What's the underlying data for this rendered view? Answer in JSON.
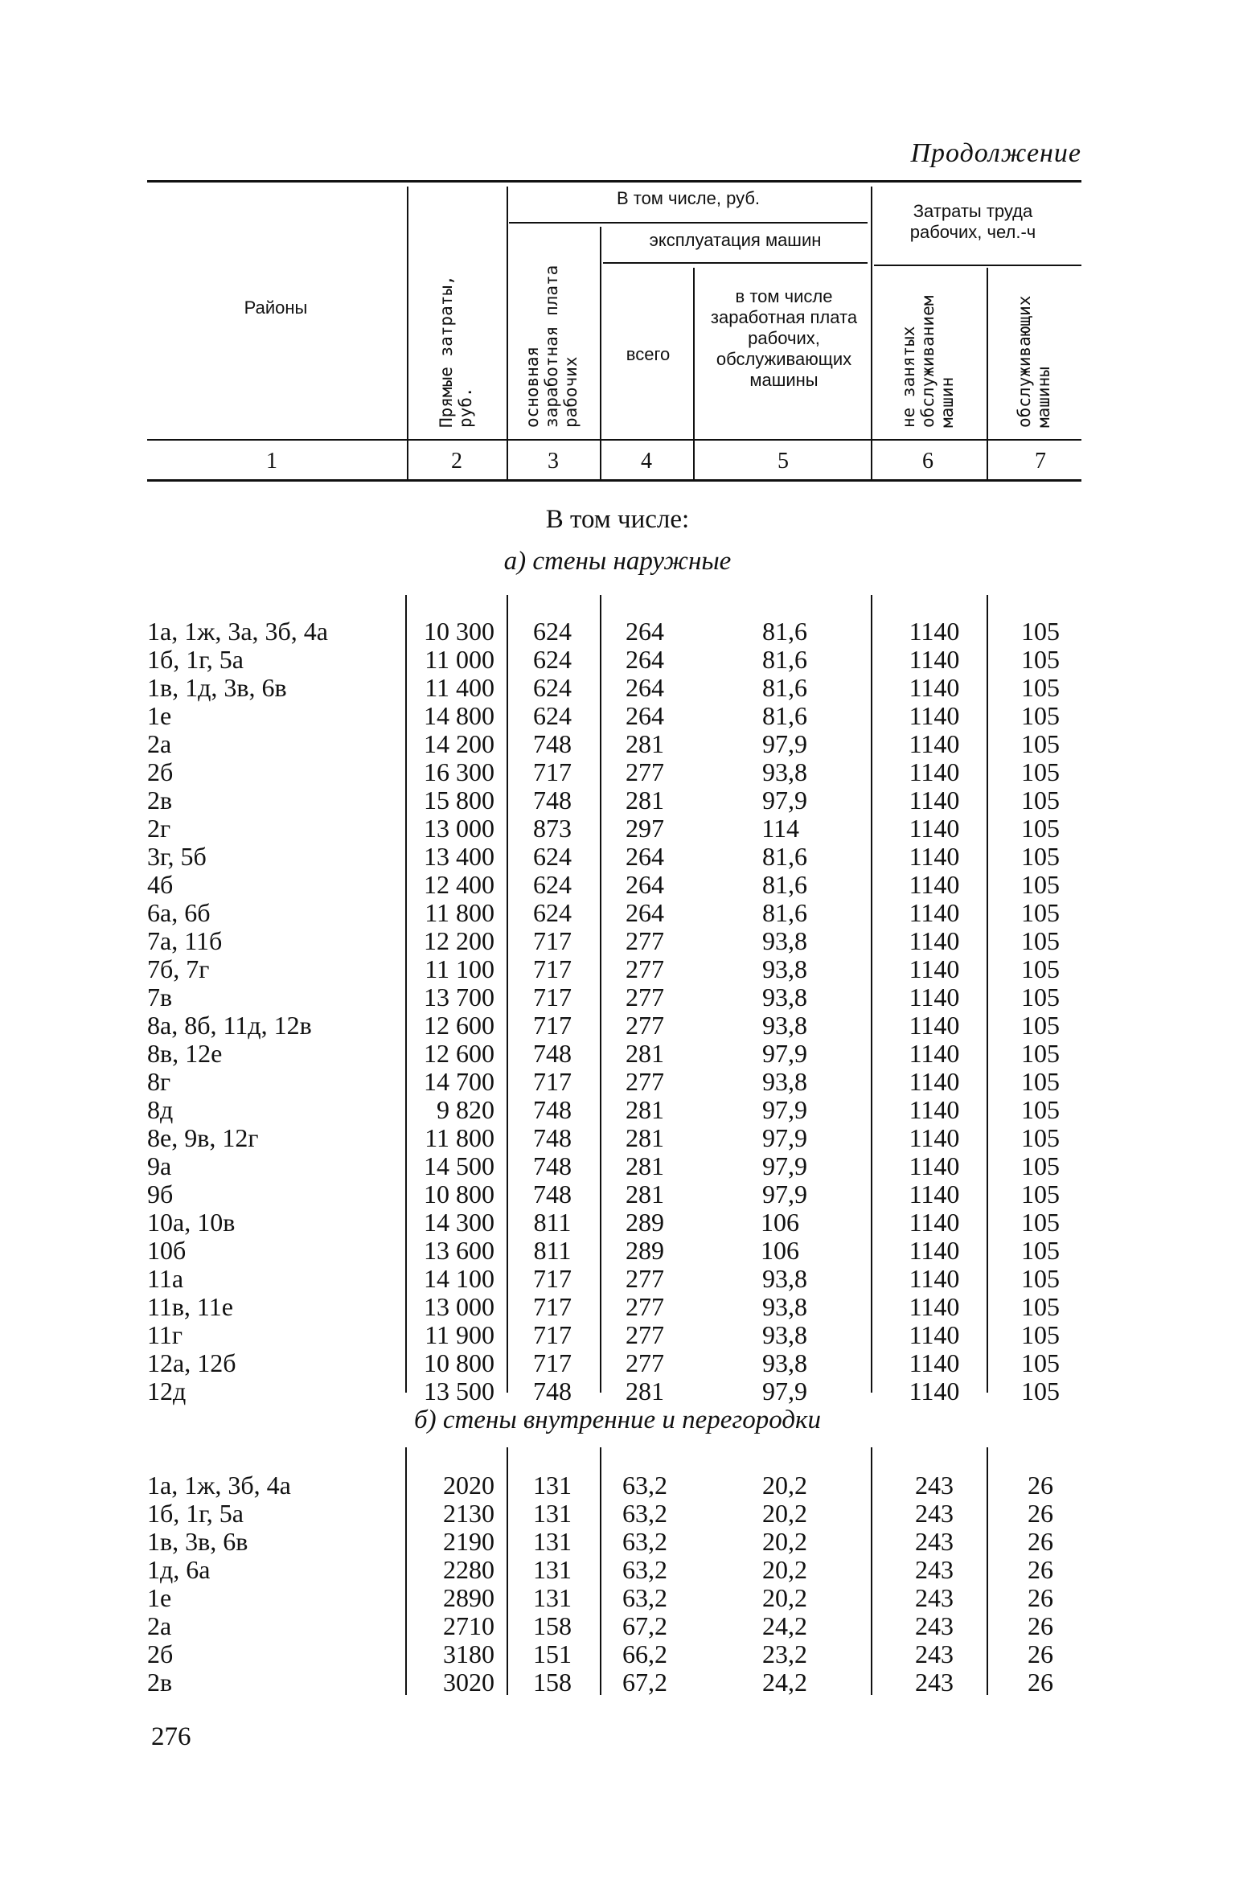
{
  "continuation": "Продолжение",
  "header": {
    "col1": "Районы",
    "col2": "Прямые затраты, руб.",
    "group_including": "В том числе, руб.",
    "col3": "основная заработная плата рабочих",
    "group_machines": "эксплуатация машин",
    "col4": "всего",
    "col5": "в том числе заработная плата рабочих, обслуживающих машины",
    "group_labor": "Затраты труда рабочих, чел.-ч",
    "col6": "не занятых обслуживанием машин",
    "col7": "обслуживающих машины",
    "col_numbers": [
      "1",
      "2",
      "3",
      "4",
      "5",
      "6",
      "7"
    ]
  },
  "including_label": "В том числе:",
  "sections": [
    {
      "title": "а) стены наружные",
      "rows": [
        [
          "1а, 1ж, 3а, 3б, 4а",
          "10 300",
          "624",
          "264",
          "81,6",
          "1140",
          "105"
        ],
        [
          "1б, 1г, 5а",
          "11 000",
          "624",
          "264",
          "81,6",
          "1140",
          "105"
        ],
        [
          "1в, 1д, 3в, 6в",
          "11 400",
          "624",
          "264",
          "81,6",
          "1140",
          "105"
        ],
        [
          "1е",
          "14 800",
          "624",
          "264",
          "81,6",
          "1140",
          "105"
        ],
        [
          "2а",
          "14 200",
          "748",
          "281",
          "97,9",
          "1140",
          "105"
        ],
        [
          "2б",
          "16 300",
          "717",
          "277",
          "93,8",
          "1140",
          "105"
        ],
        [
          "2в",
          "15 800",
          "748",
          "281",
          "97,9",
          "1140",
          "105"
        ],
        [
          "2г",
          "13 000",
          "873",
          "297",
          "114",
          "1140",
          "105"
        ],
        [
          "3г, 5б",
          "13 400",
          "624",
          "264",
          "81,6",
          "1140",
          "105"
        ],
        [
          "4б",
          "12 400",
          "624",
          "264",
          "81,6",
          "1140",
          "105"
        ],
        [
          "6а, 6б",
          "11 800",
          "624",
          "264",
          "81,6",
          "1140",
          "105"
        ],
        [
          "7а, 11б",
          "12 200",
          "717",
          "277",
          "93,8",
          "1140",
          "105"
        ],
        [
          "7б, 7г",
          "11 100",
          "717",
          "277",
          "93,8",
          "1140",
          "105"
        ],
        [
          "7в",
          "13 700",
          "717",
          "277",
          "93,8",
          "1140",
          "105"
        ],
        [
          "8а, 8б, 11д, 12в",
          "12 600",
          "717",
          "277",
          "93,8",
          "1140",
          "105"
        ],
        [
          "8в, 12е",
          "12 600",
          "748",
          "281",
          "97,9",
          "1140",
          "105"
        ],
        [
          "8г",
          "14 700",
          "717",
          "277",
          "93,8",
          "1140",
          "105"
        ],
        [
          "8д",
          "9 820",
          "748",
          "281",
          "97,9",
          "1140",
          "105"
        ],
        [
          "8е, 9в, 12г",
          "11 800",
          "748",
          "281",
          "97,9",
          "1140",
          "105"
        ],
        [
          "9а",
          "14 500",
          "748",
          "281",
          "97,9",
          "1140",
          "105"
        ],
        [
          "9б",
          "10 800",
          "748",
          "281",
          "97,9",
          "1140",
          "105"
        ],
        [
          "10а, 10в",
          "14 300",
          "811",
          "289",
          "106",
          "1140",
          "105"
        ],
        [
          "10б",
          "13 600",
          "811",
          "289",
          "106",
          "1140",
          "105"
        ],
        [
          "11а",
          "14 100",
          "717",
          "277",
          "93,8",
          "1140",
          "105"
        ],
        [
          "11в, 11е",
          "13 000",
          "717",
          "277",
          "93,8",
          "1140",
          "105"
        ],
        [
          "11г",
          "11 900",
          "717",
          "277",
          "93,8",
          "1140",
          "105"
        ],
        [
          "12а, 12б",
          "10 800",
          "717",
          "277",
          "93,8",
          "1140",
          "105"
        ],
        [
          "12д",
          "13 500",
          "748",
          "281",
          "97,9",
          "1140",
          "105"
        ]
      ]
    },
    {
      "title": "б) стены внутренние и перегородки",
      "rows": [
        [
          "1а, 1ж, 3б, 4а",
          "2020",
          "131",
          "63,2",
          "20,2",
          "243",
          "26"
        ],
        [
          "1б, 1г, 5а",
          "2130",
          "131",
          "63,2",
          "20,2",
          "243",
          "26"
        ],
        [
          "1в, 3в, 6в",
          "2190",
          "131",
          "63,2",
          "20,2",
          "243",
          "26"
        ],
        [
          "1д, 6а",
          "2280",
          "131",
          "63,2",
          "20,2",
          "243",
          "26"
        ],
        [
          "1е",
          "2890",
          "131",
          "63,2",
          "20,2",
          "243",
          "26"
        ],
        [
          "2а",
          "2710",
          "158",
          "67,2",
          "24,2",
          "243",
          "26"
        ],
        [
          "2б",
          "3180",
          "151",
          "66,2",
          "23,2",
          "243",
          "26"
        ],
        [
          "2в",
          "3020",
          "158",
          "67,2",
          "24,2",
          "243",
          "26"
        ]
      ]
    }
  ],
  "page_number": "276"
}
